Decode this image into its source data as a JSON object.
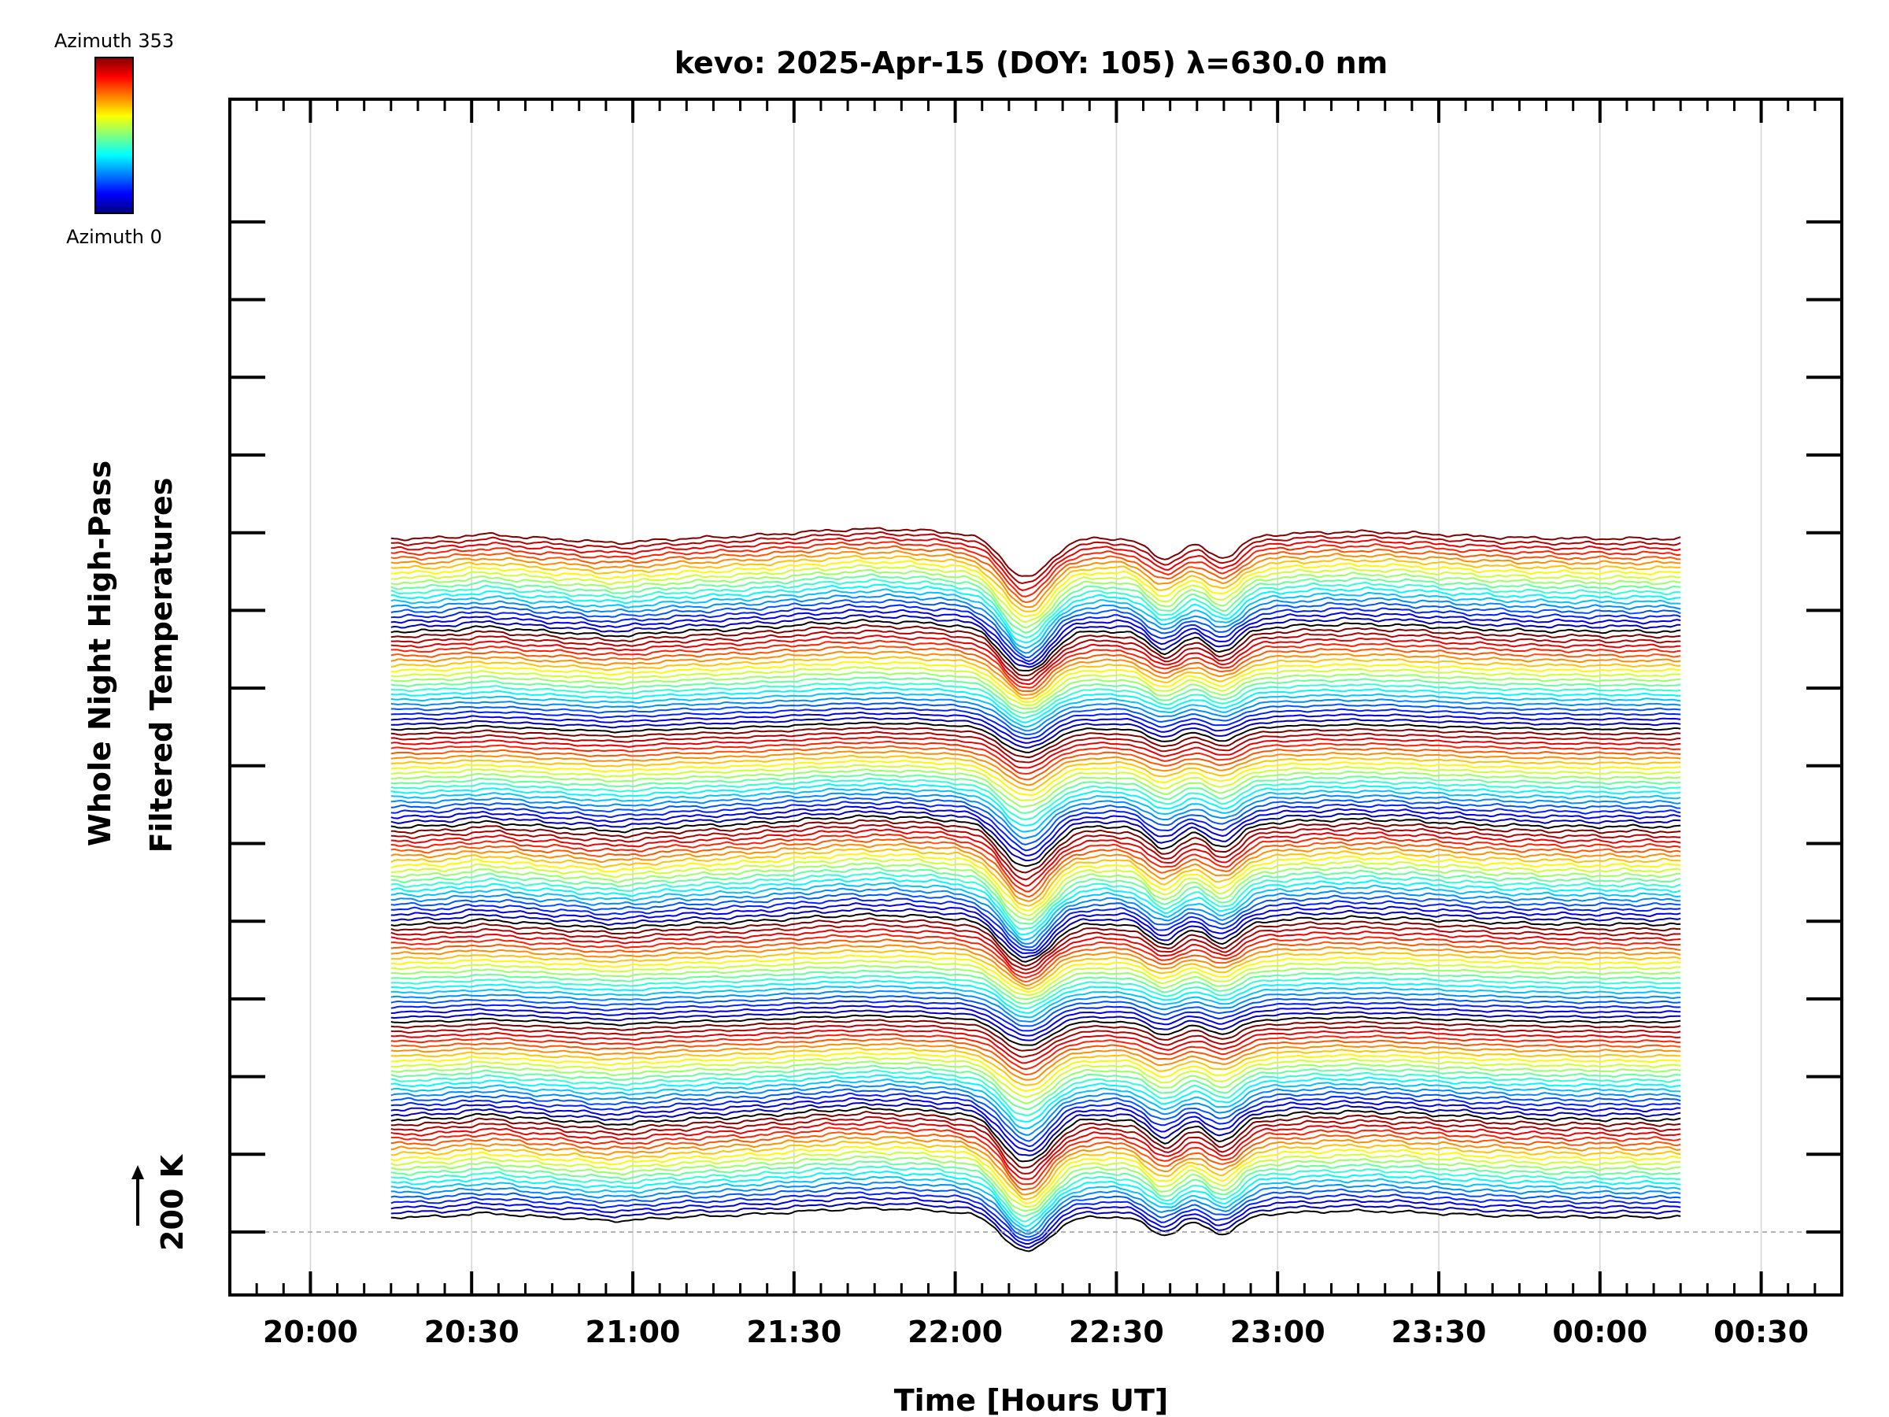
{
  "chart_data": {
    "type": "line",
    "title": "kevo: 2025-Apr-15 (DOY: 105) λ=630.0 nm",
    "xlabel": "Time [Hours UT]",
    "ylabel_line1": "Whole Night High-Pass",
    "ylabel_line2": "Filtered Temperatures",
    "scale_label": "200 K",
    "colorbar": {
      "top_label": "Azimuth 353",
      "bottom_label": "Azimuth 0"
    },
    "x_tick_labels": [
      "20:00",
      "20:30",
      "21:00",
      "21:30",
      "22:00",
      "22:30",
      "23:00",
      "23:30",
      "00:00",
      "00:30"
    ],
    "x_range_hours": [
      19.75,
      24.75
    ],
    "x_data_range_hours": [
      20.25,
      24.25
    ],
    "series_count": 140,
    "groups": 7,
    "per_group": 20,
    "dip_centers_hours": [
      22.22,
      22.65,
      22.83
    ]
  }
}
